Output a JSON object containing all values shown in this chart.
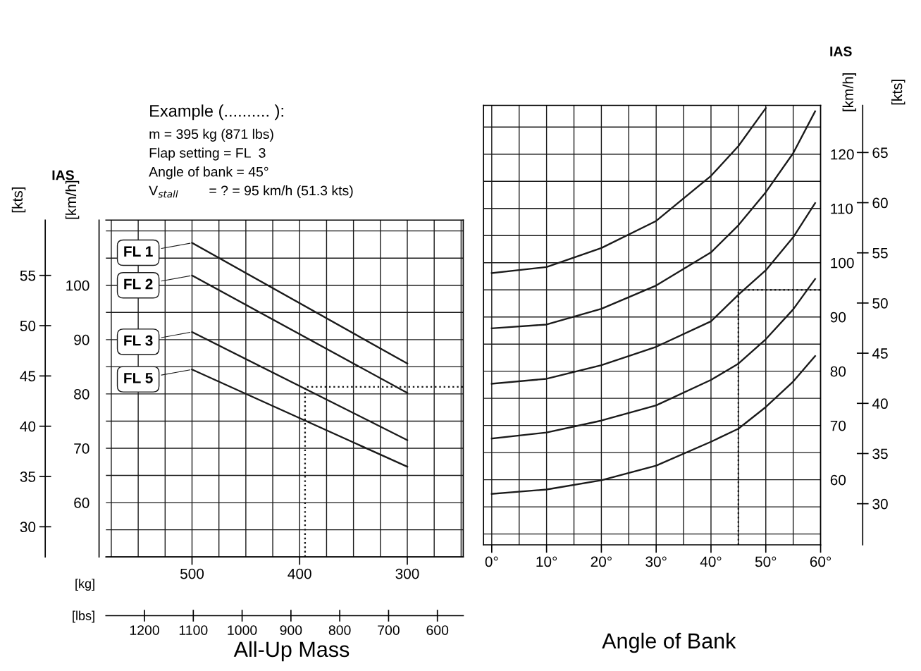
{
  "chart_data": [
    {
      "type": "line",
      "xlabel": "[kg]",
      "x2label": "[lbs]",
      "ylabel": "[km/h]",
      "y2label": "[kts]",
      "annotations": [
        "IAS",
        "Example (.......... ):",
        "m = 395 kg (871 lbs)",
        "Flap setting = FL  3",
        "Angle of bank = 45°",
        "V$_{stall}$        = ? = 95 km/h (51.3 kts)",
        "All-Up Mass"
      ],
      "xlim": [
        580,
        248
      ],
      "xticks": [
        {
          "value": 575,
          "label": null
        },
        {
          "value": 550,
          "label": null
        },
        {
          "value": 525,
          "label": null
        },
        500,
        {
          "value": 475,
          "label": null
        },
        {
          "value": 450,
          "label": null
        },
        {
          "value": 425,
          "label": null
        },
        400,
        {
          "value": 375,
          "label": null
        },
        {
          "value": 350,
          "label": null
        },
        {
          "value": 325,
          "label": null
        },
        300,
        {
          "value": 275,
          "label": null
        },
        {
          "value": 250,
          "label": null
        }
      ],
      "x2lim": [
        1279,
        547
      ],
      "x2ticks": [
        1200,
        1100,
        1000,
        900,
        800,
        700,
        600
      ],
      "ylim": [
        50,
        112
      ],
      "yticks": [
        {
          "value": 50,
          "label": null
        },
        {
          "value": 55,
          "label": null
        },
        60,
        {
          "value": 65,
          "label": null
        },
        70,
        {
          "value": 75,
          "label": null
        },
        80,
        {
          "value": 85,
          "label": null
        },
        90,
        {
          "value": 95,
          "label": null
        },
        100,
        {
          "value": 105,
          "label": null
        },
        {
          "value": 110,
          "label": null
        }
      ],
      "y2lim": [
        27,
        60.5
      ],
      "y2ticks": [
        30,
        35,
        40,
        45,
        50,
        55
      ],
      "grid": true,
      "legend": "left",
      "series": [
        {
          "name": "FL 1",
          "color": "#1a1a1a",
          "x": [
            500,
            300
          ],
          "values": [
            107.8,
            85.6
          ]
        },
        {
          "name": "FL 2",
          "color": "#1a1a1a",
          "x": [
            500,
            300
          ],
          "values": [
            101.8,
            80.2
          ]
        },
        {
          "name": "FL 3",
          "color": "#1a1a1a",
          "x": [
            500,
            300
          ],
          "values": [
            91.4,
            71.5
          ]
        },
        {
          "name": "FL 5",
          "color": "#1a1a1a",
          "x": [
            500,
            300
          ],
          "values": [
            84.5,
            66.6
          ]
        },
        {
          "color": "#1a1a1a",
          "x": [
            395,
            395,
            248
          ],
          "values": [
            50,
            81.3,
            81.3
          ],
          "line_style": "dotted"
        }
      ]
    },
    {
      "type": "line",
      "xlabel": "Angle of Bank",
      "ylabel": "[km/h]",
      "y2label": "[kts]",
      "annotations": [
        "IAS"
      ],
      "xlim": [
        -1.5,
        60
      ],
      "xticks": [
        {
          "value": 0,
          "label": "0°"
        },
        {
          "value": 5,
          "label": null
        },
        {
          "value": 10,
          "label": "10°"
        },
        {
          "value": 15,
          "label": null
        },
        {
          "value": 20,
          "label": "20°"
        },
        {
          "value": 25,
          "label": null
        },
        {
          "value": 30,
          "label": "30°"
        },
        {
          "value": 35,
          "label": null
        },
        {
          "value": 40,
          "label": "40°"
        },
        {
          "value": 45,
          "label": null
        },
        {
          "value": 50,
          "label": "50°"
        },
        {
          "value": 55,
          "label": null
        },
        {
          "value": 60,
          "label": "60°"
        }
      ],
      "ylim": [
        48,
        129
      ],
      "yticks": [
        {
          "value": 50,
          "label": null
        },
        {
          "value": 55,
          "label": null
        },
        60,
        {
          "value": 65,
          "label": null
        },
        70,
        {
          "value": 75,
          "label": null
        },
        80,
        {
          "value": 85,
          "label": null
        },
        90,
        {
          "value": 95,
          "label": null
        },
        100,
        {
          "value": 105,
          "label": null
        },
        110,
        {
          "value": 115,
          "label": null
        },
        120,
        {
          "value": 125,
          "label": null
        }
      ],
      "y2lim": [
        25.9,
        69.7
      ],
      "y2ticks": [
        30,
        35,
        40,
        45,
        50,
        55,
        60,
        65
      ],
      "grid": true,
      "series": [
        {
          "color": "#1a1a1a",
          "x": [
            0,
            10,
            20,
            30,
            40,
            45,
            50
          ],
          "values": [
            98.1,
            99.2,
            102.7,
            107.7,
            116.0,
            121.5,
            128.5
          ]
        },
        {
          "color": "#1a1a1a",
          "x": [
            0,
            10,
            20,
            30,
            40,
            45,
            50,
            55,
            59
          ],
          "values": [
            87.9,
            88.6,
            91.5,
            95.8,
            101.9,
            106.9,
            113.0,
            120.2,
            127.9
          ]
        },
        {
          "color": "#1a1a1a",
          "x": [
            0,
            10,
            20,
            30,
            40,
            45,
            50,
            55,
            59
          ],
          "values": [
            77.7,
            78.6,
            81.1,
            84.5,
            89.2,
            94.1,
            98.6,
            104.7,
            111.0
          ]
        },
        {
          "color": "#1a1a1a",
          "x": [
            0,
            10,
            20,
            30,
            40,
            45,
            50,
            55,
            59
          ],
          "values": [
            67.6,
            68.7,
            70.9,
            73.7,
            78.4,
            81.4,
            85.9,
            91.4,
            97.0
          ]
        },
        {
          "color": "#1a1a1a",
          "x": [
            0,
            10,
            20,
            30,
            40,
            45,
            50,
            55,
            59
          ],
          "values": [
            57.4,
            58.2,
            59.9,
            62.6,
            67.0,
            69.4,
            73.4,
            78.1,
            82.8
          ]
        },
        {
          "color": "#1a1a1a",
          "x": [
            45,
            45,
            60
          ],
          "values": [
            48,
            95,
            95
          ],
          "line_style": "dotted"
        }
      ]
    }
  ]
}
